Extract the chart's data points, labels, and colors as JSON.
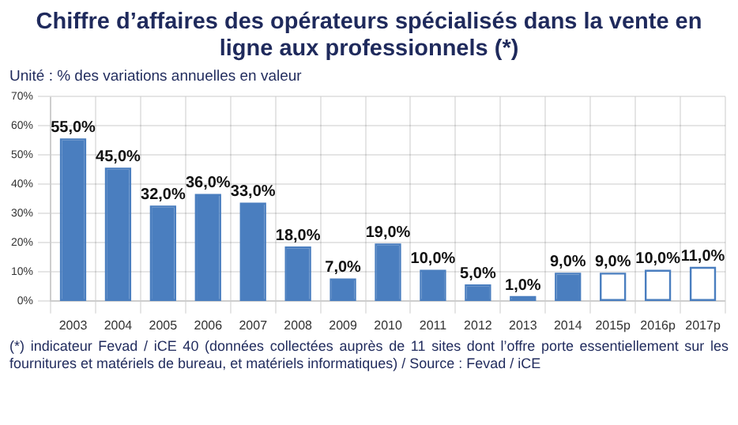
{
  "chart_data": {
    "type": "bar",
    "title": "Chiffre d’affaires des opérateurs spécialisés dans la vente en ligne aux professionnels (*)",
    "subtitle": "Unité : % des variations annuelles en valeur",
    "categories": [
      "2003",
      "2004",
      "2005",
      "2006",
      "2007",
      "2008",
      "2009",
      "2010",
      "2011",
      "2012",
      "2013",
      "2014",
      "2015p",
      "2016p",
      "2017p"
    ],
    "series": [
      {
        "color": "#4a7ebf",
        "colors": [
          "#4a7ebf",
          "#4a7ebf",
          "#4a7ebf",
          "#4a7ebf",
          "#4a7ebf",
          "#4a7ebf",
          "#4a7ebf",
          "#4a7ebf",
          "#4a7ebf",
          "#4a7ebf",
          "#4a7ebf",
          "#4a7ebf",
          "#ffffff",
          "#ffffff",
          "#ffffff"
        ],
        "values": [
          55,
          45,
          32,
          36,
          33,
          18,
          7,
          19,
          10,
          5,
          1,
          9,
          9,
          10,
          11
        ],
        "value_labels": [
          "55,0%",
          "45,0%",
          "32,0%",
          "36,0%",
          "33,0%",
          "18,0%",
          "7,0%",
          "19,0%",
          "10,0%",
          "5,0%",
          "1,0%",
          "9,0%",
          "9,0%",
          "10,0%",
          "11,0%"
        ]
      }
    ],
    "ylim": [
      0,
      70
    ],
    "yticks": [
      {
        "value": 0,
        "label": "0%"
      },
      {
        "value": 10,
        "label": "10%"
      },
      {
        "value": 20,
        "label": "20%"
      },
      {
        "value": 30,
        "label": "30%"
      },
      {
        "value": 40,
        "label": "40%"
      },
      {
        "value": 50,
        "label": "50%"
      },
      {
        "value": 60,
        "label": "60%"
      },
      {
        "value": 70,
        "label": "70%"
      }
    ],
    "grid": true,
    "annotations": [
      "(*) indicateur Fevad / iCE 40 (données collectées auprès de 11 sites dont l’offre porte essentiellement sur les fournitures et matériels de bureau, et matériels informatiques) / Source : Fevad / iCE"
    ]
  }
}
